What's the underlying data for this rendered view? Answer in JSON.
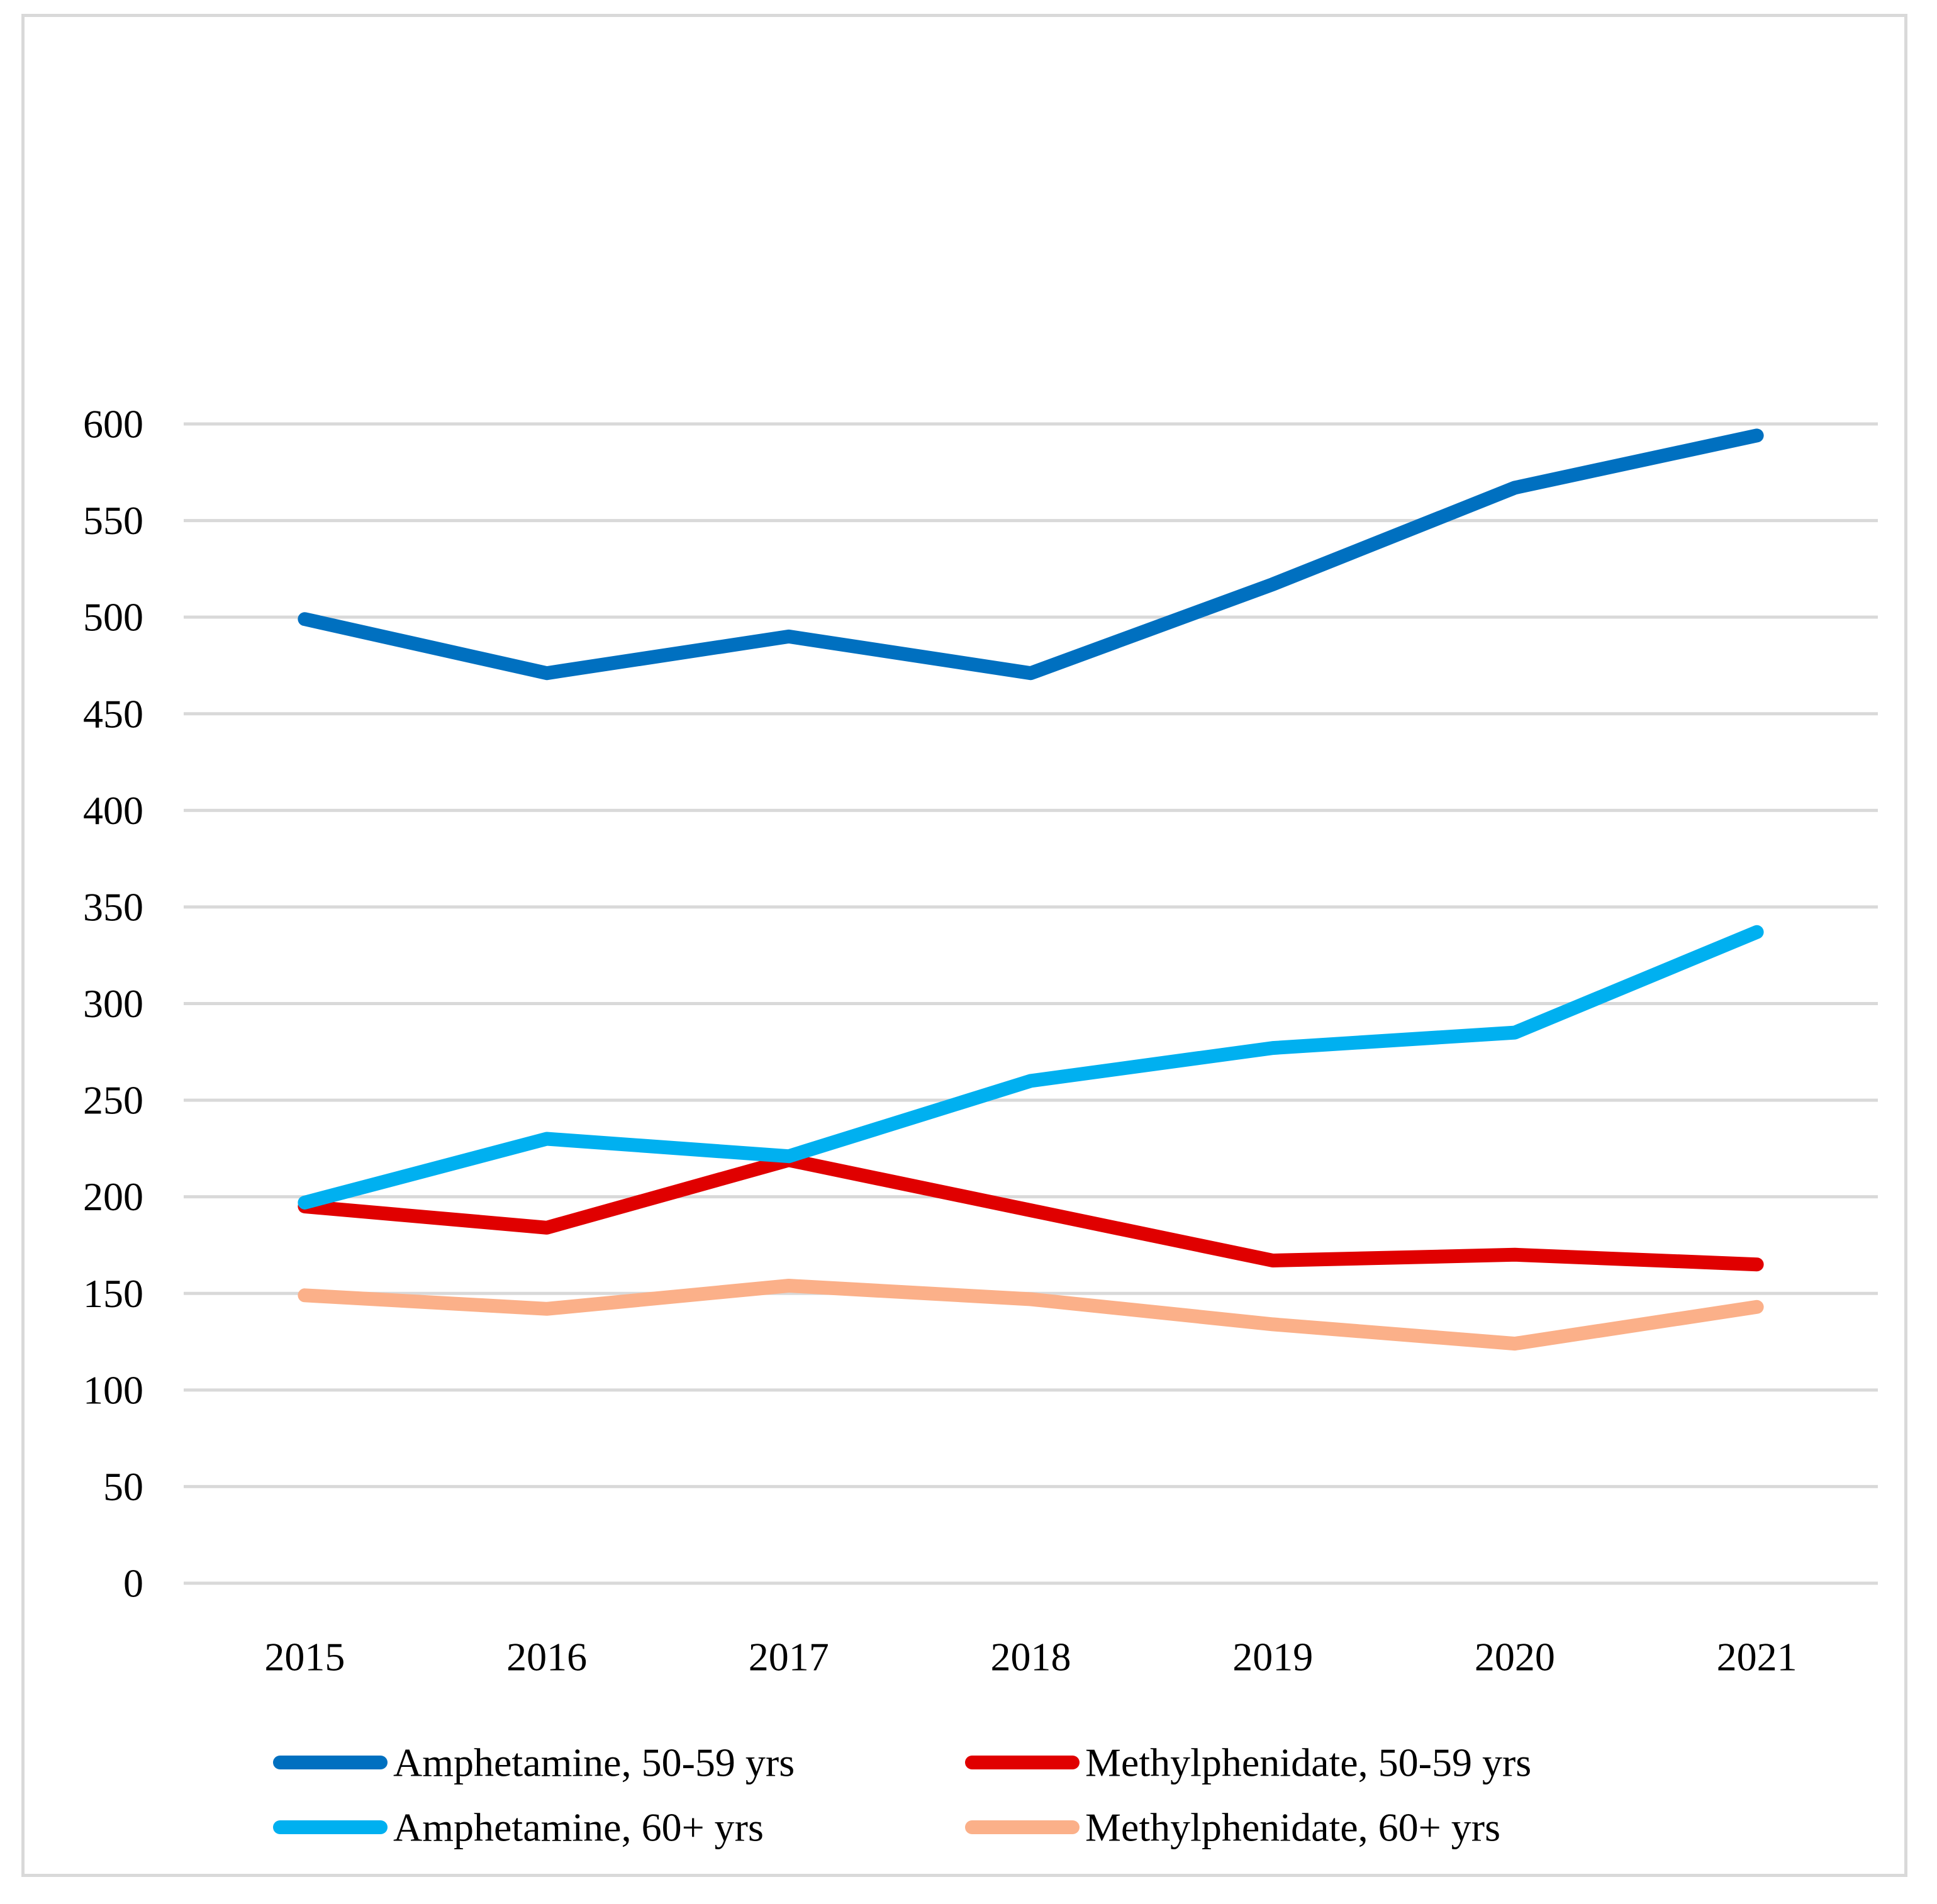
{
  "chart_data": {
    "type": "line",
    "title": "",
    "xlabel": "",
    "ylabel": "",
    "categories": [
      "2015",
      "2016",
      "2017",
      "2018",
      "2019",
      "2020",
      "2021"
    ],
    "ylim": [
      0,
      600
    ],
    "yticks": [
      "0",
      "50",
      "100",
      "150",
      "200",
      "250",
      "300",
      "350",
      "400",
      "450",
      "500",
      "550",
      "600"
    ],
    "grid": true,
    "legend_position": "bottom",
    "series": [
      {
        "name": "Amphetamine, 50-59 yrs",
        "color": "#0070c0",
        "values": [
          499,
          471,
          490,
          471,
          517,
          567,
          594
        ]
      },
      {
        "name": "Methylphenidate, 50-59 yrs",
        "color": "#e00000",
        "values": [
          195,
          184,
          219,
          193,
          167,
          170,
          165
        ]
      },
      {
        "name": "Amphetamine, 60+ yrs",
        "color": "#00b0f0",
        "values": [
          197,
          230,
          221,
          260,
          277,
          285,
          337
        ]
      },
      {
        "name": "Methylphenidate, 60+ yrs",
        "color": "#fbb089",
        "values": [
          149,
          142,
          154,
          147,
          134,
          124,
          143
        ]
      }
    ]
  }
}
